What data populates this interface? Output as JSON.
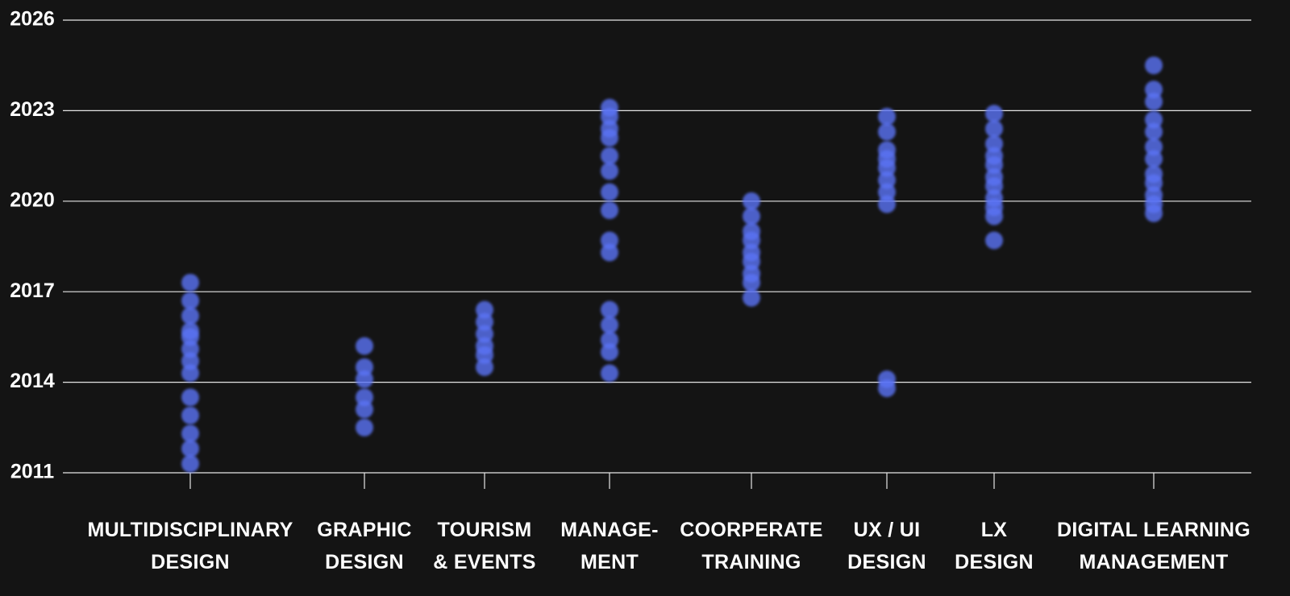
{
  "chart_data": {
    "type": "strip",
    "categories": [
      "MULTIDISCIPLINARY\nDESIGN",
      "GRAPHIC\nDESIGN",
      "TOURISM\n& EVENTS",
      "MANAGE-\nMENT",
      "COORPERATE\nTRAINING",
      "UX / UI\nDESIGN",
      "LX\nDESIGN",
      "DIGITAL LEARNING\nMANAGEMENT"
    ],
    "values": [
      [
        2017.3,
        2016.7,
        2016.2,
        2015.7,
        2015.5,
        2015.1,
        2014.7,
        2014.3,
        2013.5,
        2012.9,
        2012.3,
        2011.8,
        2011.3
      ],
      [
        2015.2,
        2014.5,
        2014.1,
        2013.5,
        2013.1,
        2012.5
      ],
      [
        2016.4,
        2016.0,
        2015.6,
        2015.2,
        2014.9,
        2014.5
      ],
      [
        2023.1,
        2022.8,
        2022.4,
        2022.1,
        2021.5,
        2021.0,
        2020.3,
        2019.7,
        2018.7,
        2018.3,
        2016.4,
        2015.9,
        2015.4,
        2015.0,
        2014.3
      ],
      [
        2020.0,
        2019.5,
        2019.0,
        2018.7,
        2018.3,
        2018.0,
        2017.6,
        2017.3,
        2016.8
      ],
      [
        2022.8,
        2022.3,
        2021.7,
        2021.4,
        2021.1,
        2020.7,
        2020.3,
        2019.9,
        2014.1,
        2013.8
      ],
      [
        2022.9,
        2022.4,
        2021.9,
        2021.5,
        2021.2,
        2020.8,
        2020.5,
        2020.1,
        2019.8,
        2019.5,
        2018.7
      ],
      [
        2024.5,
        2023.7,
        2023.3,
        2022.7,
        2022.3,
        2021.8,
        2021.4,
        2020.9,
        2020.6,
        2020.2,
        2019.9,
        2019.6
      ]
    ],
    "color": "#5b73f5",
    "ylim": [
      2011,
      2026
    ],
    "yticks": [
      2011,
      2014,
      2017,
      2020,
      2023,
      2026
    ],
    "grid": true
  }
}
